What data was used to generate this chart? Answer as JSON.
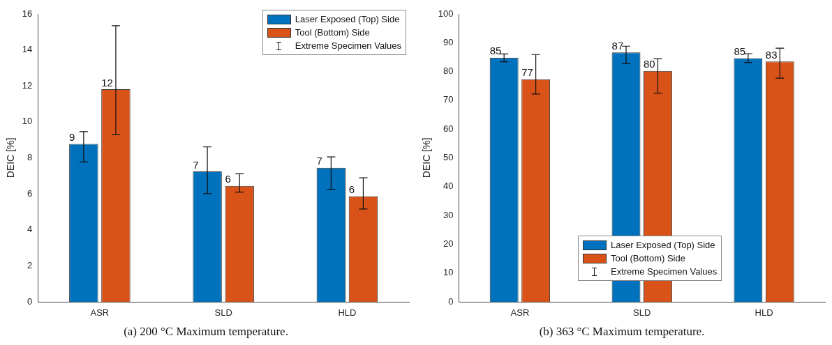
{
  "chart_data": [
    {
      "type": "bar",
      "title": "(a) 200 °C Maximum temperature.",
      "ylabel": "DEIC [%]",
      "categories": [
        "ASR",
        "SLD",
        "HLD"
      ],
      "ylim": [
        0,
        16
      ],
      "yticks": [
        0,
        2,
        4,
        6,
        8,
        10,
        12,
        14,
        16
      ],
      "grid": false,
      "legend": "top right",
      "annotations": [
        "Extreme Specimen Values"
      ],
      "series": [
        {
          "name": "Laser Exposed (Top) Side",
          "color": "#0072bd",
          "values": [
            8.77,
            7.24,
            7.45
          ],
          "errors": [
            [
              7.77,
              9.46
            ],
            [
              6.01,
              8.61
            ],
            [
              6.25,
              8.05
            ]
          ],
          "value_labels": [
            "9",
            "7",
            "7"
          ]
        },
        {
          "name": "Tool (Bottom) Side",
          "color": "#d95319",
          "values": [
            11.82,
            6.44,
            5.87
          ],
          "errors": [
            [
              9.29,
              15.35
            ],
            [
              6.1,
              7.11
            ],
            [
              5.16,
              6.89
            ]
          ],
          "value_labels": [
            "12",
            "6",
            "6"
          ]
        }
      ]
    },
    {
      "type": "bar",
      "title": "(b) 363 °C Maximum temperature.",
      "ylabel": "DEIC [%]",
      "categories": [
        "ASR",
        "SLD",
        "HLD"
      ],
      "ylim": [
        0,
        100
      ],
      "yticks": [
        0,
        10,
        20,
        30,
        40,
        50,
        60,
        70,
        80,
        90,
        100
      ],
      "grid": false,
      "legend": "bottom",
      "annotations": [
        "Extreme Specimen Values"
      ],
      "series": [
        {
          "name": "Laser Exposed (Top) Side",
          "color": "#0072bd",
          "values": [
            84.8,
            86.6,
            84.6
          ],
          "errors": [
            [
              83.4,
              86.1
            ],
            [
              82.8,
              88.8
            ],
            [
              83.1,
              86.2
            ]
          ],
          "value_labels": [
            "85",
            "87",
            "85"
          ]
        },
        {
          "name": "Tool (Bottom) Side",
          "color": "#d95319",
          "values": [
            77.3,
            80.2,
            83.5
          ],
          "errors": [
            [
              72.2,
              85.9
            ],
            [
              72.5,
              84.4
            ],
            [
              77.7,
              88.1
            ]
          ],
          "value_labels": [
            "77",
            "80",
            "83"
          ]
        }
      ]
    }
  ]
}
